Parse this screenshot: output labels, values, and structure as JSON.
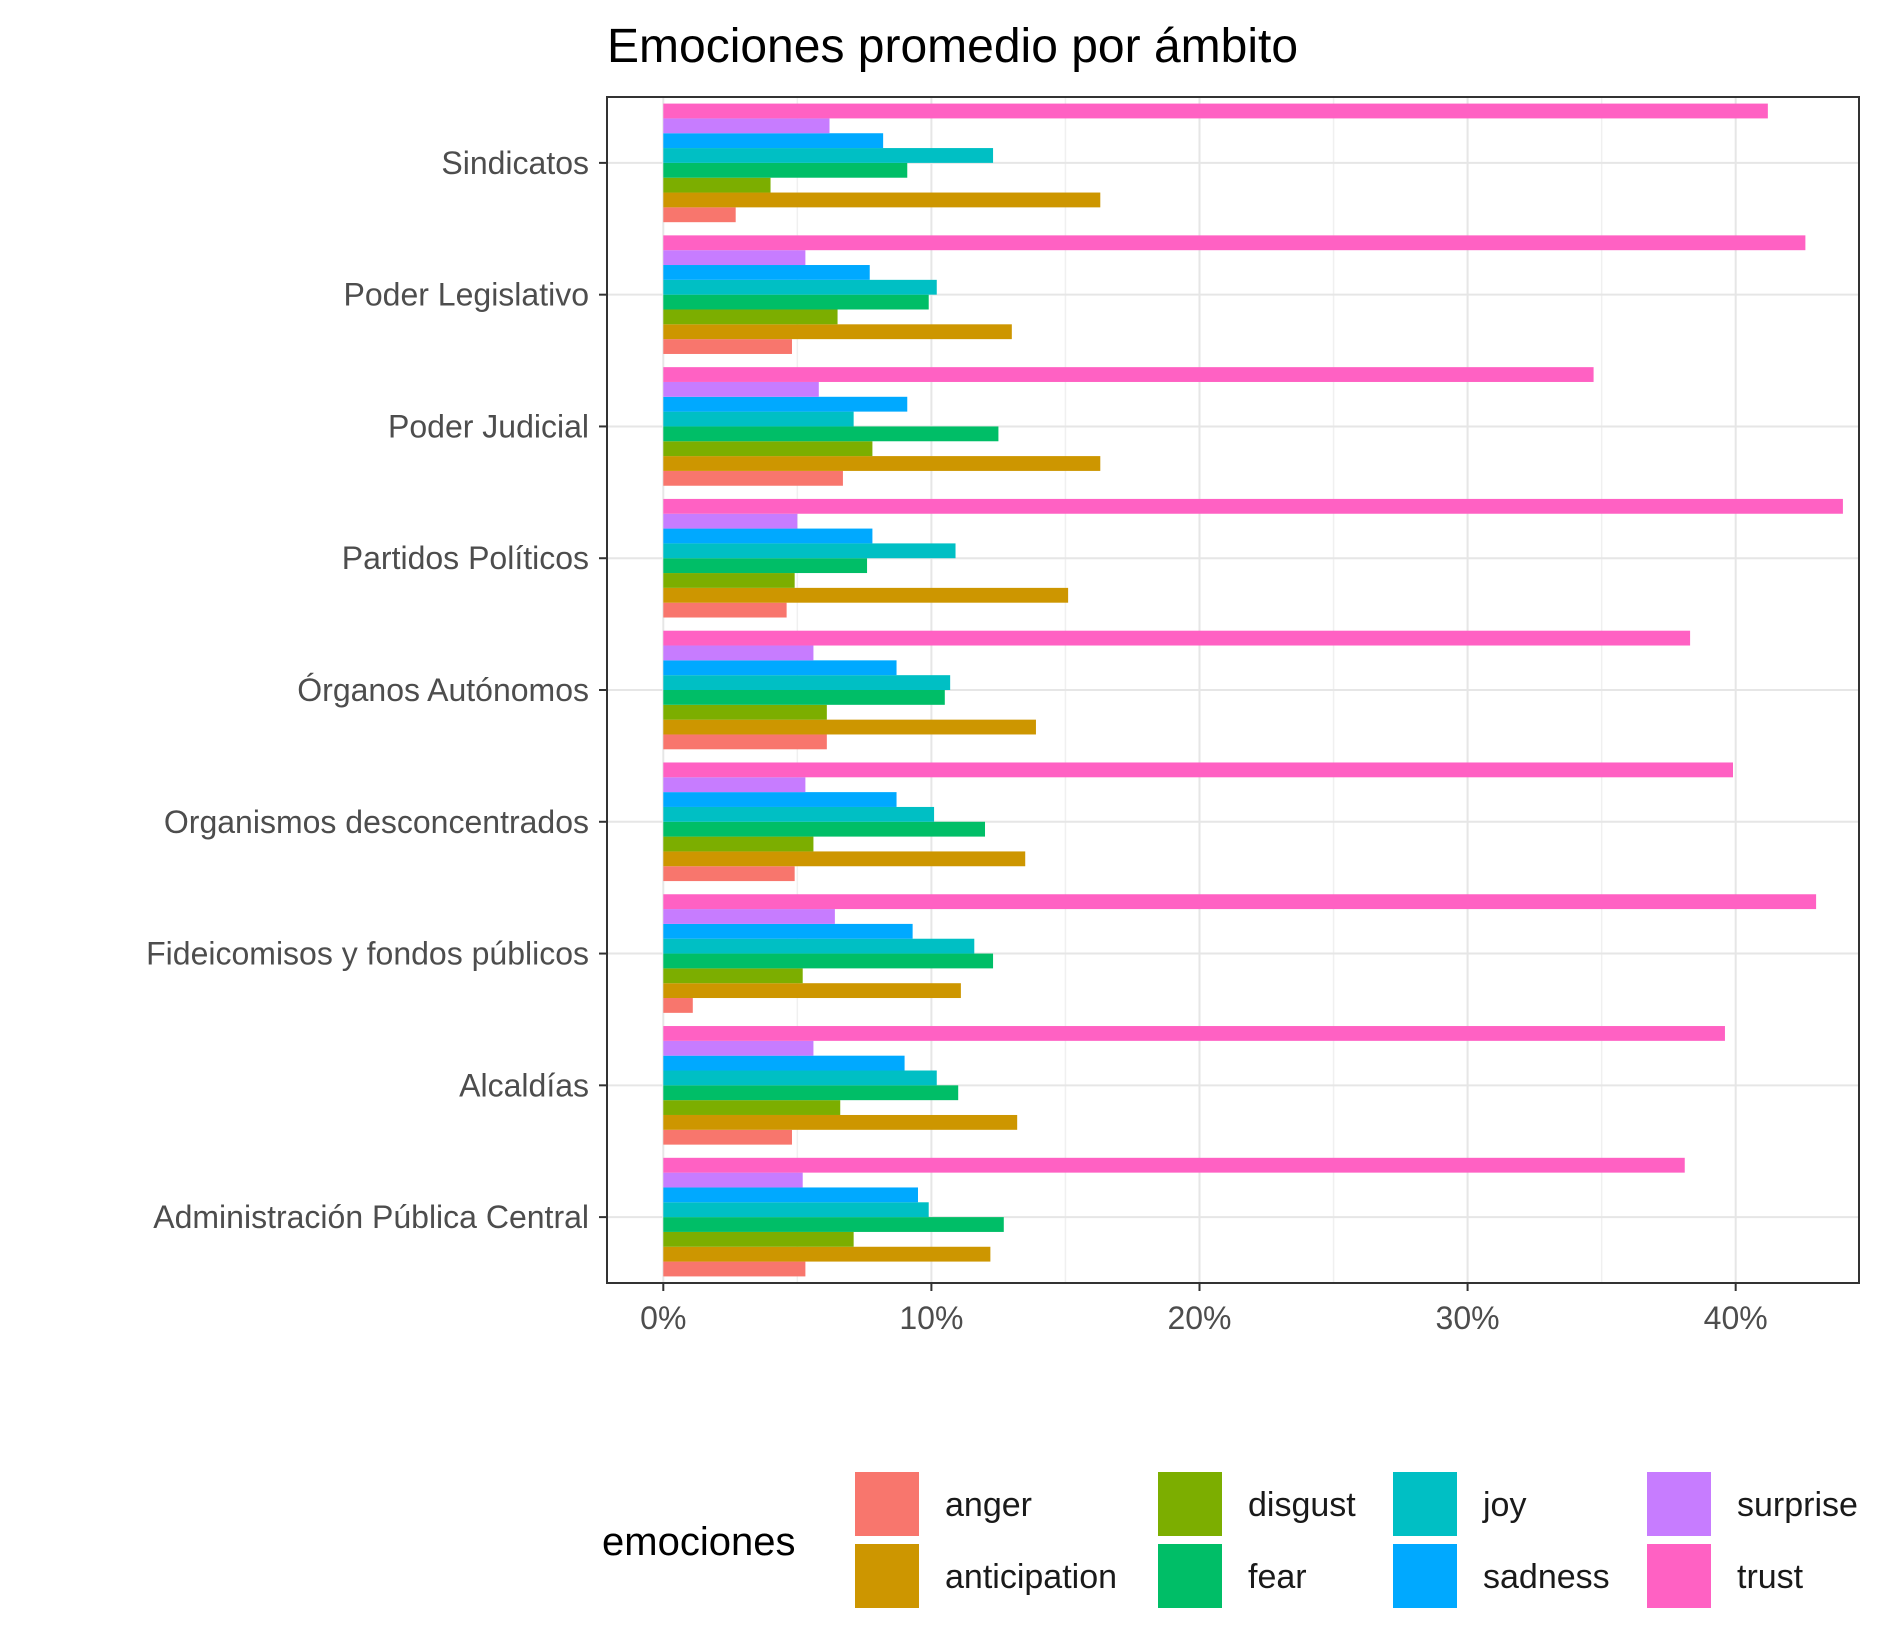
{
  "chart_data": {
    "type": "bar",
    "orientation": "horizontal",
    "title": "Emociones promedio por ámbito",
    "xlabel": "",
    "ylabel": "",
    "xlim": [
      -2.1,
      44.6
    ],
    "x_ticks": [
      0,
      10,
      20,
      30,
      40
    ],
    "x_tick_labels": [
      "0%",
      "10%",
      "20%",
      "30%",
      "40%"
    ],
    "categories": [
      "Sindicatos",
      "Poder Legislativo",
      "Poder Judicial",
      "Partidos Políticos",
      "Órganos Autónomos",
      "Organismos desconcentrados",
      "Fideicomisos y fondos públicos",
      "Alcaldías",
      "Administración Pública Central"
    ],
    "legend_title": "emociones",
    "legend_position": "bottom",
    "grid": true,
    "series": [
      {
        "name": "anger",
        "color": "#F8766D",
        "values": [
          2.7,
          4.8,
          6.7,
          4.6,
          6.1,
          4.9,
          1.1,
          4.8,
          5.3
        ]
      },
      {
        "name": "anticipation",
        "color": "#CD9600",
        "values": [
          16.3,
          13.0,
          16.3,
          15.1,
          13.9,
          13.5,
          11.1,
          13.2,
          12.2
        ]
      },
      {
        "name": "disgust",
        "color": "#7CAE00",
        "values": [
          4.0,
          6.5,
          7.8,
          4.9,
          6.1,
          5.6,
          5.2,
          6.6,
          7.1
        ]
      },
      {
        "name": "fear",
        "color": "#00BE67",
        "values": [
          9.1,
          9.9,
          12.5,
          7.6,
          10.5,
          12.0,
          12.3,
          11.0,
          12.7
        ]
      },
      {
        "name": "joy",
        "color": "#00BFC4",
        "values": [
          12.3,
          10.2,
          7.1,
          10.9,
          10.7,
          10.1,
          11.6,
          10.2,
          9.9
        ]
      },
      {
        "name": "sadness",
        "color": "#00A9FF",
        "values": [
          8.2,
          7.7,
          9.1,
          7.8,
          8.7,
          8.7,
          9.3,
          9.0,
          9.5
        ]
      },
      {
        "name": "surprise",
        "color": "#C77CFF",
        "values": [
          6.2,
          5.3,
          5.8,
          5.0,
          5.6,
          5.3,
          6.4,
          5.6,
          5.2
        ]
      },
      {
        "name": "trust",
        "color": "#FF61C3",
        "values": [
          41.2,
          42.6,
          34.7,
          44.0,
          38.3,
          39.9,
          43.0,
          39.6,
          38.1
        ]
      }
    ]
  }
}
